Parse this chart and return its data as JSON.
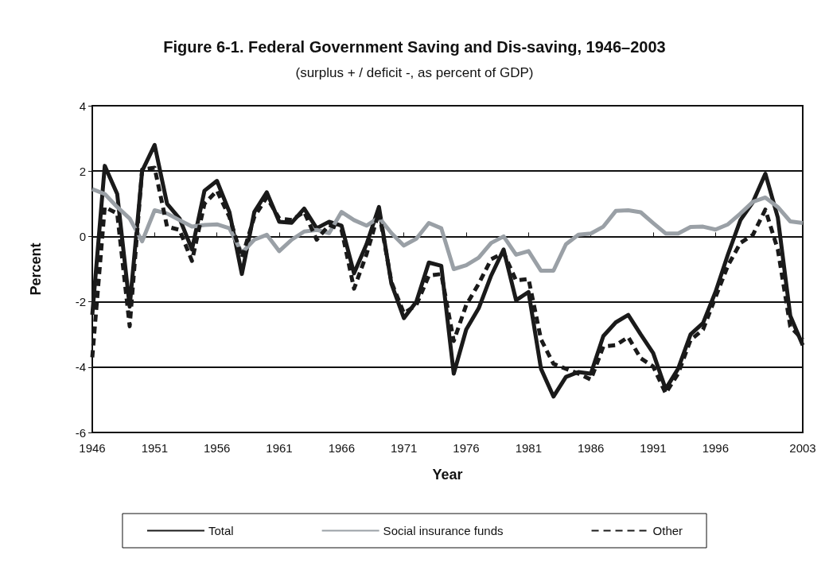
{
  "chart_data": {
    "type": "line",
    "title": "Figure 6-1. Federal Government Saving and Dis-saving, 1946–2003",
    "subtitle": "(surplus + / deficit -, as percent of GDP)",
    "xlabel": "Year",
    "ylabel": "Percent",
    "categories": [
      "1946",
      null,
      null,
      null,
      null,
      "1951",
      null,
      null,
      null,
      null,
      "1956",
      null,
      null,
      null,
      null,
      "1961",
      null,
      null,
      null,
      null,
      "1966",
      null,
      null,
      null,
      null,
      "1971",
      null,
      null,
      null,
      null,
      "1976",
      null,
      null,
      null,
      null,
      "1981",
      null,
      null,
      null,
      null,
      "1986",
      null,
      null,
      null,
      null,
      "1991",
      null,
      null,
      null,
      null,
      "1996",
      null,
      null,
      null,
      null,
      null,
      null,
      "2003"
    ],
    "ylim": [
      -6,
      4
    ],
    "yticks": [
      -6,
      -4,
      -2,
      0,
      2,
      4
    ],
    "grid": "y",
    "legend": "bottom",
    "marker": "none",
    "series": [
      {
        "name": "Total",
        "color": "#1a1a1a",
        "line_style": "solid",
        "values": [
          -2.4,
          2.16,
          1.3,
          -2.15,
          2.0,
          2.8,
          1.0,
          0.55,
          -0.4,
          1.4,
          1.7,
          0.75,
          -1.15,
          0.75,
          1.35,
          0.45,
          0.42,
          0.85,
          0.25,
          0.45,
          0.33,
          -1.13,
          -0.24,
          0.9,
          -1.45,
          -2.5,
          -2.0,
          -0.8,
          -0.9,
          -4.2,
          -2.85,
          -2.2,
          -1.2,
          -0.4,
          -1.95,
          -1.7,
          -4.05,
          -4.9,
          -4.3,
          -4.15,
          -4.2,
          -3.05,
          -2.63,
          -2.4,
          -3.0,
          -3.57,
          -4.67,
          -4.05,
          -3.0,
          -2.65,
          -1.7,
          -0.55,
          0.5,
          1.05,
          1.92,
          0.58,
          -2.43,
          -3.33
        ]
      },
      {
        "name": "Social insurance funds",
        "color": "#9aa0a6",
        "line_style": "solid",
        "values": [
          1.45,
          1.3,
          0.9,
          0.55,
          -0.15,
          0.8,
          0.7,
          0.5,
          0.3,
          0.35,
          0.37,
          0.25,
          -0.5,
          -0.1,
          0.05,
          -0.45,
          -0.1,
          0.15,
          0.2,
          0.1,
          0.75,
          0.5,
          0.33,
          0.58,
          0.1,
          -0.28,
          -0.07,
          0.41,
          0.25,
          -1.0,
          -0.88,
          -0.65,
          -0.2,
          0.0,
          -0.56,
          -0.45,
          -1.05,
          -1.05,
          -0.24,
          0.05,
          0.09,
          0.3,
          0.78,
          0.8,
          0.74,
          0.41,
          0.09,
          0.09,
          0.29,
          0.3,
          0.21,
          0.37,
          0.7,
          1.06,
          1.19,
          0.9,
          0.46,
          0.41
        ]
      },
      {
        "name": "Other",
        "color": "#1a1a1a",
        "line_style": "dashed",
        "values": [
          -3.7,
          0.9,
          0.7,
          -2.75,
          2.05,
          2.1,
          0.3,
          0.2,
          -0.75,
          1.0,
          1.4,
          0.6,
          -0.65,
          0.6,
          1.2,
          0.55,
          0.5,
          0.75,
          -0.1,
          0.35,
          0.2,
          -1.6,
          -0.55,
          0.75,
          -1.4,
          -2.35,
          -2.1,
          -1.2,
          -1.15,
          -3.2,
          -2.1,
          -1.45,
          -0.7,
          -0.5,
          -1.35,
          -1.3,
          -3.15,
          -3.9,
          -4.05,
          -4.2,
          -4.38,
          -3.37,
          -3.33,
          -3.08,
          -3.73,
          -3.98,
          -4.8,
          -4.2,
          -3.17,
          -2.85,
          -1.86,
          -0.89,
          -0.2,
          0.05,
          0.82,
          -0.4,
          -2.76,
          -3.16
        ]
      }
    ]
  }
}
